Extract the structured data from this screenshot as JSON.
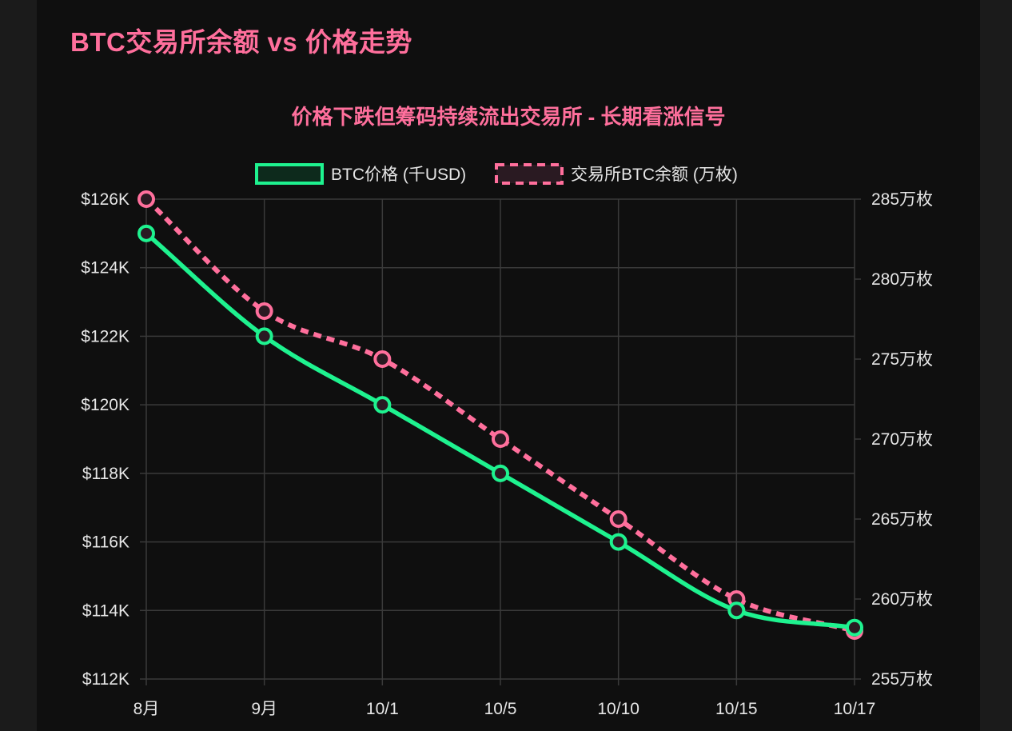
{
  "header": {
    "title": "BTC交易所余额 vs 价格走势"
  },
  "colors": {
    "price": "#1ef28f",
    "balance": "#ff6f9c",
    "title": "#ff6f9c",
    "grid": "#3a3a3a",
    "background": "#0f0f0f"
  },
  "chart_data": {
    "type": "line",
    "title": "价格下跌但筹码持续流出交易所 - 长期看涨信号",
    "categories": [
      "8月",
      "9月",
      "10/1",
      "10/5",
      "10/10",
      "10/15",
      "10/17"
    ],
    "series": [
      {
        "name": "BTC价格 (千USD)",
        "axis": "left",
        "style": "solid",
        "color": "#1ef28f",
        "values": [
          125,
          122,
          120,
          118,
          116,
          114,
          113.5
        ]
      },
      {
        "name": "交易所BTC余额 (万枚)",
        "axis": "right",
        "style": "dashed",
        "color": "#ff6f9c",
        "values": [
          285,
          278,
          275,
          270,
          265,
          260,
          258
        ]
      }
    ],
    "y_left": {
      "ylim": [
        112,
        126
      ],
      "ticks": [
        126,
        124,
        122,
        120,
        118,
        116,
        114,
        112
      ],
      "tick_labels": [
        "$126K",
        "$124K",
        "$122K",
        "$120K",
        "$118K",
        "$116K",
        "$114K",
        "$112K"
      ]
    },
    "y_right": {
      "ylim": [
        255,
        285
      ],
      "ticks": [
        285,
        280,
        275,
        270,
        265,
        260,
        255
      ],
      "tick_labels": [
        "285万枚",
        "280万枚",
        "275万枚",
        "270万枚",
        "265万枚",
        "260万枚",
        "255万枚"
      ]
    },
    "grid": true,
    "legend_position": "top-center"
  }
}
